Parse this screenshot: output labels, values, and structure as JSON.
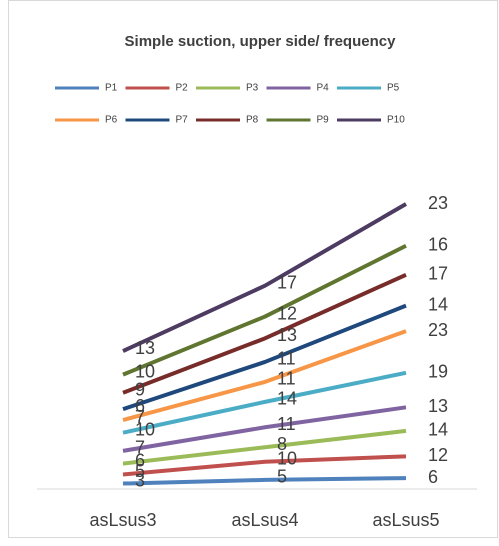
{
  "chart_data": {
    "type": "line",
    "stacked": true,
    "title": "Simple suction, upper side/ frequency",
    "categories": [
      "asLsus3",
      "asLsus4",
      "asLsus5"
    ],
    "series": [
      {
        "name": "P1",
        "color": "#4f81bd",
        "values": [
          3,
          5,
          6
        ]
      },
      {
        "name": "P2",
        "color": "#c0504d",
        "values": [
          5,
          10,
          12
        ]
      },
      {
        "name": "P3",
        "color": "#9bbb59",
        "values": [
          6,
          8,
          14
        ]
      },
      {
        "name": "P4",
        "color": "#8064a2",
        "values": [
          7,
          11,
          13
        ]
      },
      {
        "name": "P5",
        "color": "#4bacc6",
        "values": [
          10,
          14,
          19
        ]
      },
      {
        "name": "P6",
        "color": "#f79646",
        "values": [
          7,
          11,
          23
        ]
      },
      {
        "name": "P7",
        "color": "#1f497d",
        "values": [
          6,
          11,
          14
        ]
      },
      {
        "name": "P8",
        "color": "#772c2a",
        "values": [
          9,
          13,
          17
        ]
      },
      {
        "name": "P9",
        "color": "#5f7530",
        "values": [
          10,
          12,
          16
        ]
      },
      {
        "name": "P10",
        "color": "#4d3b62",
        "values": [
          13,
          17,
          23
        ]
      }
    ],
    "legend": "top"
  }
}
